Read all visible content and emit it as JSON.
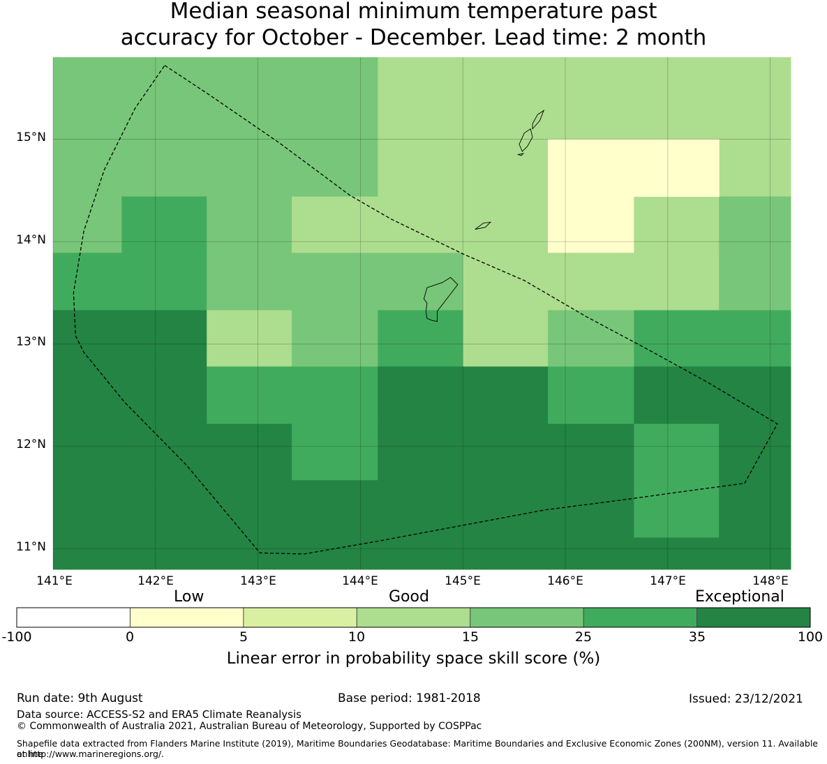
{
  "title": {
    "line1": "Median seasonal minimum temperature past",
    "line2": "accuracy for October - December. Lead time: 2 month"
  },
  "map": {
    "lon_range": [
      141.0,
      148.2
    ],
    "lat_range": [
      10.8,
      15.8
    ],
    "lat_ticks": [
      "15°N",
      "14°N",
      "13°N",
      "12°N",
      "11°N"
    ],
    "lon_ticks": [
      "141°E",
      "142°E",
      "143°E",
      "144°E",
      "145°E",
      "146°E",
      "147°E",
      "148°E"
    ],
    "palette": [
      "#ffffff",
      "#ffffcc",
      "#d9f0a3",
      "#addd8e",
      "#78c679",
      "#41ab5d",
      "#238443"
    ],
    "cells": [
      {
        "lon0": 141.0,
        "lon1": 144.17,
        "lat0": 14.44,
        "lat1": 15.8,
        "class": 4
      },
      {
        "lon0": 144.17,
        "lon1": 148.2,
        "lat0": 14.44,
        "lat1": 15.8,
        "class": 3
      },
      {
        "lon0": 141.0,
        "lon1": 141.67,
        "lat0": 13.89,
        "lat1": 14.44,
        "class": 4
      },
      {
        "lon0": 141.67,
        "lon1": 142.5,
        "lat0": 13.89,
        "lat1": 14.44,
        "class": 5
      },
      {
        "lon0": 142.5,
        "lon1": 143.33,
        "lat0": 13.89,
        "lat1": 14.44,
        "class": 4
      },
      {
        "lon0": 143.33,
        "lon1": 145.83,
        "lat0": 13.89,
        "lat1": 14.44,
        "class": 3
      },
      {
        "lon0": 145.83,
        "lon1": 146.67,
        "lat0": 13.89,
        "lat1": 14.44,
        "class": 1
      },
      {
        "lon0": 146.67,
        "lon1": 147.5,
        "lat0": 13.89,
        "lat1": 14.44,
        "class": 3
      },
      {
        "lon0": 147.5,
        "lon1": 148.2,
        "lat0": 13.89,
        "lat1": 14.44,
        "class": 4
      },
      {
        "lon0": 145.83,
        "lon1": 147.5,
        "lat0": 14.44,
        "lat1": 15.0,
        "class": 1
      },
      {
        "lon0": 141.0,
        "lon1": 142.5,
        "lat0": 13.33,
        "lat1": 13.89,
        "class": 5
      },
      {
        "lon0": 142.5,
        "lon1": 145.0,
        "lat0": 13.33,
        "lat1": 13.89,
        "class": 4
      },
      {
        "lon0": 145.0,
        "lon1": 147.5,
        "lat0": 13.33,
        "lat1": 13.89,
        "class": 3
      },
      {
        "lon0": 147.5,
        "lon1": 148.2,
        "lat0": 13.33,
        "lat1": 13.89,
        "class": 4
      },
      {
        "lon0": 141.0,
        "lon1": 142.5,
        "lat0": 12.78,
        "lat1": 13.33,
        "class": 6
      },
      {
        "lon0": 142.5,
        "lon1": 143.33,
        "lat0": 12.78,
        "lat1": 13.33,
        "class": 3
      },
      {
        "lon0": 143.33,
        "lon1": 144.17,
        "lat0": 12.78,
        "lat1": 13.33,
        "class": 4
      },
      {
        "lon0": 144.17,
        "lon1": 145.0,
        "lat0": 12.78,
        "lat1": 13.33,
        "class": 5
      },
      {
        "lon0": 145.0,
        "lon1": 145.83,
        "lat0": 12.78,
        "lat1": 13.33,
        "class": 3
      },
      {
        "lon0": 145.83,
        "lon1": 146.67,
        "lat0": 12.78,
        "lat1": 13.33,
        "class": 4
      },
      {
        "lon0": 146.67,
        "lon1": 148.2,
        "lat0": 12.78,
        "lat1": 13.33,
        "class": 5
      },
      {
        "lon0": 141.0,
        "lon1": 142.5,
        "lat0": 12.22,
        "lat1": 12.78,
        "class": 6
      },
      {
        "lon0": 142.5,
        "lon1": 144.17,
        "lat0": 12.22,
        "lat1": 12.78,
        "class": 5
      },
      {
        "lon0": 144.17,
        "lon1": 145.83,
        "lat0": 12.22,
        "lat1": 12.78,
        "class": 6
      },
      {
        "lon0": 145.83,
        "lon1": 146.67,
        "lat0": 12.22,
        "lat1": 12.78,
        "class": 5
      },
      {
        "lon0": 146.67,
        "lon1": 148.2,
        "lat0": 12.22,
        "lat1": 12.78,
        "class": 6
      },
      {
        "lon0": 141.0,
        "lon1": 143.33,
        "lat0": 11.67,
        "lat1": 12.22,
        "class": 6
      },
      {
        "lon0": 143.33,
        "lon1": 144.17,
        "lat0": 11.67,
        "lat1": 12.22,
        "class": 5
      },
      {
        "lon0": 144.17,
        "lon1": 146.67,
        "lat0": 11.67,
        "lat1": 12.22,
        "class": 6
      },
      {
        "lon0": 146.67,
        "lon1": 147.5,
        "lat0": 11.67,
        "lat1": 12.22,
        "class": 5
      },
      {
        "lon0": 147.5,
        "lon1": 148.2,
        "lat0": 11.67,
        "lat1": 12.22,
        "class": 6
      },
      {
        "lon0": 141.0,
        "lon1": 146.67,
        "lat0": 10.8,
        "lat1": 11.67,
        "class": 6
      },
      {
        "lon0": 146.67,
        "lon1": 147.5,
        "lat0": 11.11,
        "lat1": 11.67,
        "class": 5
      },
      {
        "lon0": 146.67,
        "lon1": 147.5,
        "lat0": 10.8,
        "lat1": 11.11,
        "class": 6
      },
      {
        "lon0": 147.5,
        "lon1": 148.2,
        "lat0": 10.8,
        "lat1": 11.67,
        "class": 6
      }
    ],
    "eez_boundary": [
      [
        142.09,
        15.72
      ],
      [
        142.5,
        15.45
      ],
      [
        143.2,
        14.97
      ],
      [
        143.9,
        14.45
      ],
      [
        144.3,
        14.22
      ],
      [
        145.0,
        13.88
      ],
      [
        145.6,
        13.62
      ],
      [
        146.2,
        13.27
      ],
      [
        146.8,
        12.95
      ],
      [
        147.4,
        12.62
      ],
      [
        148.07,
        12.22
      ],
      [
        147.75,
        11.64
      ],
      [
        147.3,
        11.58
      ],
      [
        146.5,
        11.47
      ],
      [
        145.8,
        11.38
      ],
      [
        145.0,
        11.23
      ],
      [
        144.2,
        11.08
      ],
      [
        143.45,
        10.95
      ],
      [
        143.02,
        10.96
      ],
      [
        142.3,
        11.82
      ],
      [
        141.7,
        12.43
      ],
      [
        141.3,
        12.92
      ],
      [
        141.22,
        13.08
      ],
      [
        141.2,
        13.5
      ],
      [
        141.3,
        14.1
      ],
      [
        141.5,
        14.7
      ],
      [
        141.8,
        15.3
      ],
      [
        142.09,
        15.72
      ]
    ],
    "islands": [
      [
        [
          144.65,
          13.55
        ],
        [
          144.8,
          13.6
        ],
        [
          144.88,
          13.65
        ],
        [
          144.95,
          13.58
        ],
        [
          144.85,
          13.45
        ],
        [
          144.75,
          13.32
        ],
        [
          144.75,
          13.22
        ],
        [
          144.7,
          13.23
        ],
        [
          144.65,
          13.25
        ],
        [
          144.64,
          13.32
        ],
        [
          144.65,
          13.4
        ],
        [
          144.62,
          13.44
        ],
        [
          144.65,
          13.55
        ]
      ],
      [
        [
          145.12,
          14.12
        ],
        [
          145.2,
          14.18
        ],
        [
          145.27,
          14.19
        ],
        [
          145.22,
          14.14
        ],
        [
          145.12,
          14.12
        ]
      ],
      [
        [
          145.58,
          14.88
        ],
        [
          145.63,
          14.93
        ],
        [
          145.68,
          15.02
        ],
        [
          145.66,
          15.1
        ],
        [
          145.6,
          15.06
        ],
        [
          145.55,
          14.95
        ],
        [
          145.58,
          14.88
        ]
      ],
      [
        [
          145.68,
          15.1
        ],
        [
          145.75,
          15.18
        ],
        [
          145.79,
          15.28
        ],
        [
          145.73,
          15.24
        ],
        [
          145.68,
          15.15
        ],
        [
          145.68,
          15.1
        ]
      ],
      [
        [
          145.54,
          14.85
        ],
        [
          145.59,
          14.86
        ],
        [
          145.57,
          14.84
        ],
        [
          145.54,
          14.85
        ]
      ]
    ]
  },
  "colorbar": {
    "categories": {
      "low": "Low",
      "good": "Good",
      "exceptional": "Exceptional"
    },
    "colors": [
      "#ffffff",
      "#ffffcc",
      "#d9f0a3",
      "#addd8e",
      "#78c679",
      "#41ab5d",
      "#238443"
    ],
    "ticks": [
      "-100",
      "0",
      "5",
      "10",
      "15",
      "25",
      "35",
      "100"
    ],
    "label": "Linear error in probability space skill score (%)"
  },
  "footer": {
    "run_date": "Run date: 9th August",
    "base_period": "Base period: 1981-2018",
    "issued": "Issued: 23/12/2021",
    "data_source": "Data source: ACCESS-S2 and ERA5 Climate Reanalysis",
    "copyright": "© Commonwealth of Australia 2021, Australian Bureau of Meteorology, Supported by COSPPac",
    "shapefile_line1": "Shapefile data extracted from Flanders Marine Institute (2019), Maritime Boundaries Geodatabase: Maritime Boundaries and Exclusive Economic Zones (200NM), version 11. Available online",
    "shapefile_line2": "at http://www.marineregions.org/."
  }
}
